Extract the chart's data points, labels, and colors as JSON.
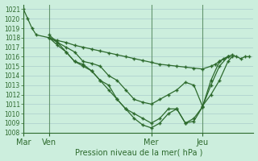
{
  "bg_color": "#cceedd",
  "grid_color": "#aacccc",
  "line_color": "#2d6a2d",
  "marker_color": "#2d6a2d",
  "xlabel_text": "Pression niveau de la mer( hPa )",
  "ylim": [
    1008,
    1021.5
  ],
  "yticks": [
    1008,
    1009,
    1010,
    1011,
    1012,
    1013,
    1014,
    1015,
    1016,
    1017,
    1018,
    1019,
    1020,
    1021
  ],
  "xtick_labels": [
    "Mar",
    "Ven",
    "Mer",
    "Jeu"
  ],
  "xtick_positions": [
    0,
    3,
    15,
    21
  ],
  "xlim": [
    0,
    27
  ],
  "vlines": [
    0,
    3,
    15,
    21
  ],
  "series": [
    {
      "x": [
        0,
        0.5,
        1,
        1.5,
        3,
        4,
        5,
        6,
        7,
        8,
        9,
        10,
        11,
        12,
        13,
        14,
        15,
        16,
        17,
        18,
        19,
        20,
        21,
        22,
        22.5,
        23,
        23.5,
        24,
        24.5,
        25,
        25.5,
        26,
        26.5
      ],
      "y": [
        1021,
        1020,
        1019,
        1018.3,
        1018,
        1017.7,
        1017.5,
        1017.2,
        1017.0,
        1016.8,
        1016.6,
        1016.4,
        1016.2,
        1016.0,
        1015.8,
        1015.6,
        1015.4,
        1015.2,
        1015.1,
        1015.0,
        1014.9,
        1014.8,
        1014.7,
        1015.0,
        1015.2,
        1015.5,
        1015.8,
        1016.0,
        1016.2,
        1016.0,
        1015.8,
        1016.0,
        1016.0
      ]
    },
    {
      "x": [
        3,
        4,
        5,
        6,
        7,
        8,
        9,
        10,
        11,
        12,
        13,
        14,
        15,
        16,
        17,
        18,
        19,
        20,
        21,
        22,
        23,
        24,
        24.5
      ],
      "y": [
        1018,
        1017.5,
        1017,
        1016.5,
        1015.5,
        1015.3,
        1015.0,
        1014.0,
        1013.5,
        1012.5,
        1011.5,
        1011.2,
        1011.0,
        1011.5,
        1012.0,
        1012.5,
        1013.3,
        1013.0,
        1010.8,
        1012.0,
        1013.5,
        1015.5,
        1016.0
      ]
    },
    {
      "x": [
        3,
        4,
        5,
        6,
        7,
        8,
        9,
        10,
        11,
        12,
        13,
        14,
        15,
        16,
        17,
        18,
        19,
        20,
        21,
        22,
        23,
        24
      ],
      "y": [
        1018,
        1017.2,
        1016.5,
        1015.5,
        1015.2,
        1014.5,
        1013.5,
        1013.0,
        1011.5,
        1010.5,
        1010.0,
        1009.5,
        1009.0,
        1009.5,
        1010.5,
        1010.5,
        1009.0,
        1009.2,
        1010.7,
        1013.0,
        1015.0,
        1016.0
      ]
    },
    {
      "x": [
        3,
        4,
        5,
        6,
        7,
        8,
        9,
        10,
        11,
        12,
        13,
        14,
        15,
        16,
        17,
        18,
        19,
        20,
        21,
        22,
        23,
        24
      ],
      "y": [
        1018.3,
        1017.5,
        1016.5,
        1015.5,
        1015.0,
        1014.5,
        1013.5,
        1012.5,
        1011.5,
        1010.5,
        1009.5,
        1008.8,
        1008.5,
        1009.0,
        1010.0,
        1010.5,
        1009.0,
        1009.5,
        1010.7,
        1013.5,
        1015.5,
        1016.0
      ]
    }
  ]
}
